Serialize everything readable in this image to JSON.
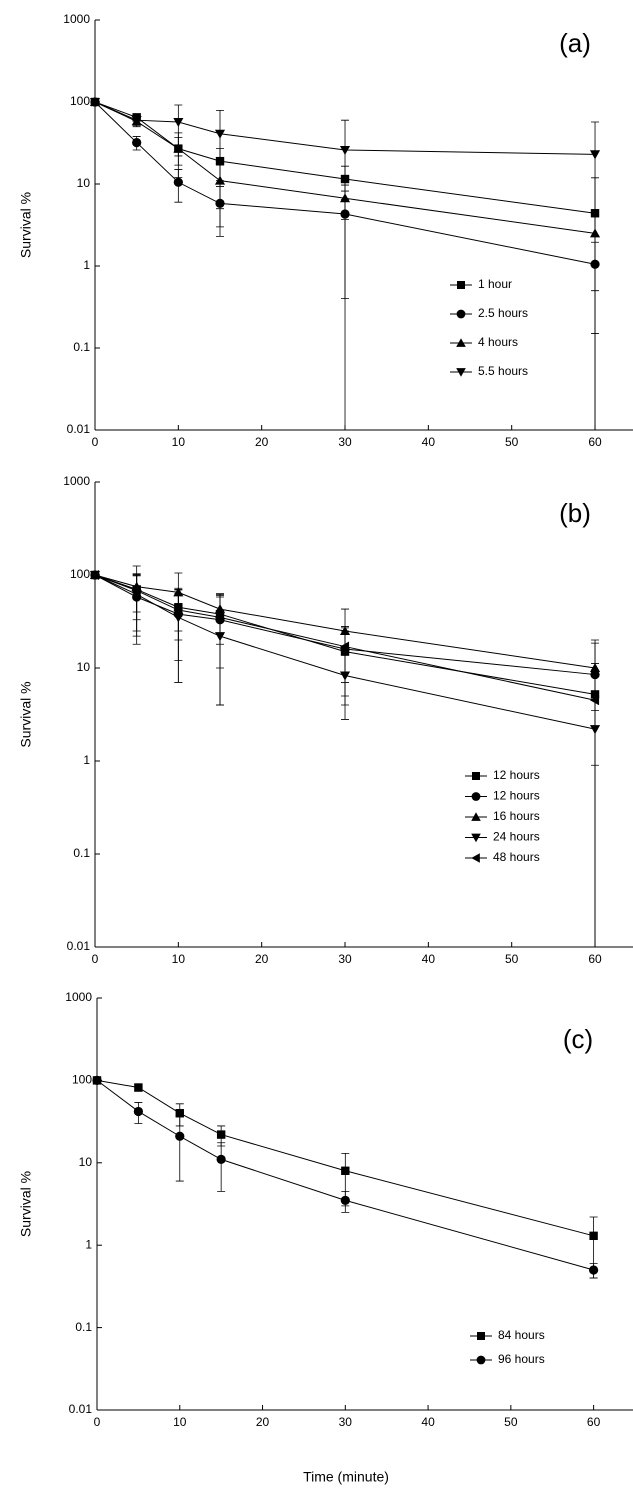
{
  "chart_data": [
    {
      "type": "line",
      "panel_label": "(a)",
      "y_label": "Survival %",
      "y_scale": "log",
      "x": [
        0,
        5,
        10,
        15,
        30,
        60
      ],
      "xlim": [
        0,
        65
      ],
      "xticks": [
        0,
        10,
        20,
        30,
        40,
        50,
        60
      ],
      "ylim": [
        0.01,
        1000
      ],
      "yticks": [
        0.01,
        0.1,
        1,
        10,
        100,
        1000
      ],
      "series": [
        {
          "name": "1 hour",
          "color": "#000000",
          "marker": "square",
          "values": [
            100,
            65,
            27,
            19,
            11.5,
            4.4
          ],
          "errors": [
            0,
            6,
            10,
            8,
            5,
            7.5
          ]
        },
        {
          "name": "2.5 hours",
          "color": "#000000",
          "marker": "circle",
          "values": [
            100,
            32,
            10.5,
            5.8,
            4.3,
            1.05
          ],
          "errors": [
            0,
            6,
            4.5,
            3.5,
            3.9,
            0.9
          ]
        },
        {
          "name": "4 hours",
          "color": "#000000",
          "marker": "triangle-up",
          "values": [
            100,
            58,
            27,
            11,
            6.7,
            2.5
          ],
          "errors": [
            0,
            8,
            15,
            6,
            3,
            2
          ]
        },
        {
          "name": "5.5 hours",
          "color": "#000000",
          "marker": "triangle-down",
          "values": [
            100,
            60,
            57,
            41,
            26,
            23
          ],
          "errors": [
            0,
            8,
            35,
            38,
            34,
            34
          ]
        }
      ]
    },
    {
      "type": "line",
      "panel_label": "(b)",
      "y_label": "Survival %",
      "y_scale": "log",
      "x": [
        0,
        5,
        10,
        15,
        30,
        60
      ],
      "xlim": [
        0,
        65
      ],
      "xticks": [
        0,
        10,
        20,
        30,
        40,
        50,
        60
      ],
      "ylim": [
        0.01,
        1000
      ],
      "yticks": [
        0.01,
        0.1,
        1,
        10,
        100,
        1000
      ],
      "series": [
        {
          "name": "12 hours",
          "color": "#000000",
          "marker": "square",
          "values": [
            100,
            70,
            45,
            38,
            15,
            5.2
          ],
          "errors": [
            0,
            30,
            25,
            20,
            10,
            6
          ]
        },
        {
          "name": "12 hours",
          "color": "#000000",
          "marker": "circle",
          "values": [
            100,
            58,
            38,
            33,
            16,
            8.5
          ],
          "errors": [
            0,
            40,
            31,
            29,
            12,
            10
          ]
        },
        {
          "name": "16 hours",
          "color": "#000000",
          "marker": "triangle-up",
          "values": [
            100,
            75,
            65,
            43,
            25,
            10
          ],
          "errors": [
            0,
            50,
            40,
            20,
            18,
            10
          ]
        },
        {
          "name": "24 hours",
          "color": "#000000",
          "marker": "triangle-down",
          "values": [
            100,
            62,
            35,
            22,
            8.3,
            2.2
          ],
          "errors": [
            0,
            40,
            28,
            18,
            5.5,
            1.3
          ]
        },
        {
          "name": "48 hours",
          "color": "#000000",
          "marker": "triangle-left",
          "values": [
            100,
            68,
            42,
            35,
            17,
            4.5
          ],
          "errors": [
            0,
            35,
            30,
            25,
            10,
            5
          ]
        }
      ]
    },
    {
      "type": "line",
      "panel_label": "(c)",
      "y_label": "Survival %",
      "x_label": "Time (minute)",
      "y_scale": "log",
      "x": [
        0,
        5,
        10,
        15,
        30,
        60
      ],
      "xlim": [
        0,
        65
      ],
      "xticks": [
        0,
        10,
        20,
        30,
        40,
        50,
        60
      ],
      "ylim": [
        0.01,
        1000
      ],
      "yticks": [
        0.01,
        0.1,
        1,
        10,
        100,
        1000
      ],
      "series": [
        {
          "name": "84 hours",
          "color": "#000000",
          "marker": "square",
          "values": [
            100,
            82,
            40,
            22,
            8,
            1.3
          ],
          "errors": [
            0,
            8,
            12,
            6,
            5,
            0.9
          ]
        },
        {
          "name": "96 hours",
          "color": "#000000",
          "marker": "circle",
          "values": [
            100,
            42,
            21,
            11,
            3.5,
            0.5
          ],
          "errors": [
            0,
            12,
            15,
            6.5,
            1,
            0.1
          ]
        }
      ]
    }
  ]
}
